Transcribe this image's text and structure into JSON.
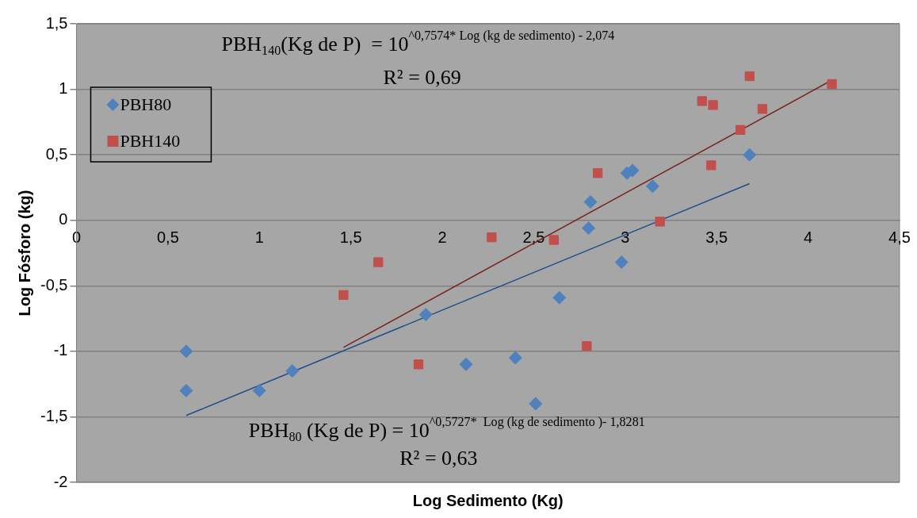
{
  "chart_data": {
    "type": "scatter",
    "xlabel": "Log Sedimento (Kg)",
    "ylabel": "Log Fósforo (kg)",
    "xlim": [
      0,
      4.5
    ],
    "ylim": [
      -2,
      1.5
    ],
    "xticks": [
      0,
      {
        "value": 0.5,
        "label": "0,5"
      },
      1,
      {
        "value": 1.5,
        "label": "1,5"
      },
      2,
      {
        "value": 2.5,
        "label": "2,5"
      },
      3,
      {
        "value": 3.5,
        "label": "3,5"
      },
      4,
      {
        "value": 4.5,
        "label": "4,5"
      }
    ],
    "yticks": [
      -2,
      {
        "value": -1.5,
        "label": "-1,5"
      },
      -1,
      {
        "value": -0.5,
        "label": "-0,5"
      },
      0,
      {
        "value": 0.5,
        "label": "0,5"
      },
      1,
      {
        "value": 1.5,
        "label": "1,5"
      }
    ],
    "grid": "y",
    "legend": "top left",
    "series": [
      {
        "name": "PBH80",
        "color": "#4f81bd",
        "marker": "diamond",
        "x": [
          0.6,
          0.6,
          1.0,
          1.18,
          1.91,
          2.13,
          2.4,
          2.51,
          2.64,
          2.8,
          2.81,
          2.98,
          3.01,
          3.04,
          3.15,
          3.68
        ],
        "values": [
          -1.0,
          -1.3,
          -1.3,
          -1.15,
          -0.72,
          -1.1,
          -1.05,
          -1.4,
          -0.59,
          -0.06,
          0.14,
          -0.32,
          0.36,
          0.38,
          0.26,
          0.5
        ]
      },
      {
        "name": "PBH140",
        "color": "#c0504d",
        "marker": "square",
        "x": [
          1.46,
          1.65,
          1.87,
          2.27,
          2.61,
          2.79,
          2.85,
          3.19,
          3.42,
          3.48,
          3.47,
          3.63,
          3.68,
          3.75,
          4.13
        ],
        "values": [
          -0.57,
          -0.32,
          -1.1,
          -0.13,
          -0.15,
          -0.96,
          0.36,
          -0.01,
          0.91,
          0.88,
          0.42,
          0.69,
          1.1,
          0.85,
          1.04
        ]
      },
      {
        "type": "line",
        "color": "#1f4e8c",
        "marker": "none",
        "x": [
          0.6,
          3.68
        ],
        "values": [
          -1.49,
          0.28
        ]
      },
      {
        "type": "line",
        "color": "#7b2222",
        "marker": "none",
        "x": [
          1.46,
          4.13
        ],
        "values": [
          -0.97,
          1.07
        ]
      }
    ],
    "annotations": [
      "PBH$_{140}$(Kg de P)  = 10$^{^0,7574* Log (kg de sedimento) - 2,074}$",
      "R² = 0,69",
      "PBH$_{80}$ (Kg de P) = 10$^{^0,5727*  Log (kg de sedimento )- 1,8281}$",
      "R² = 0,63"
    ]
  }
}
